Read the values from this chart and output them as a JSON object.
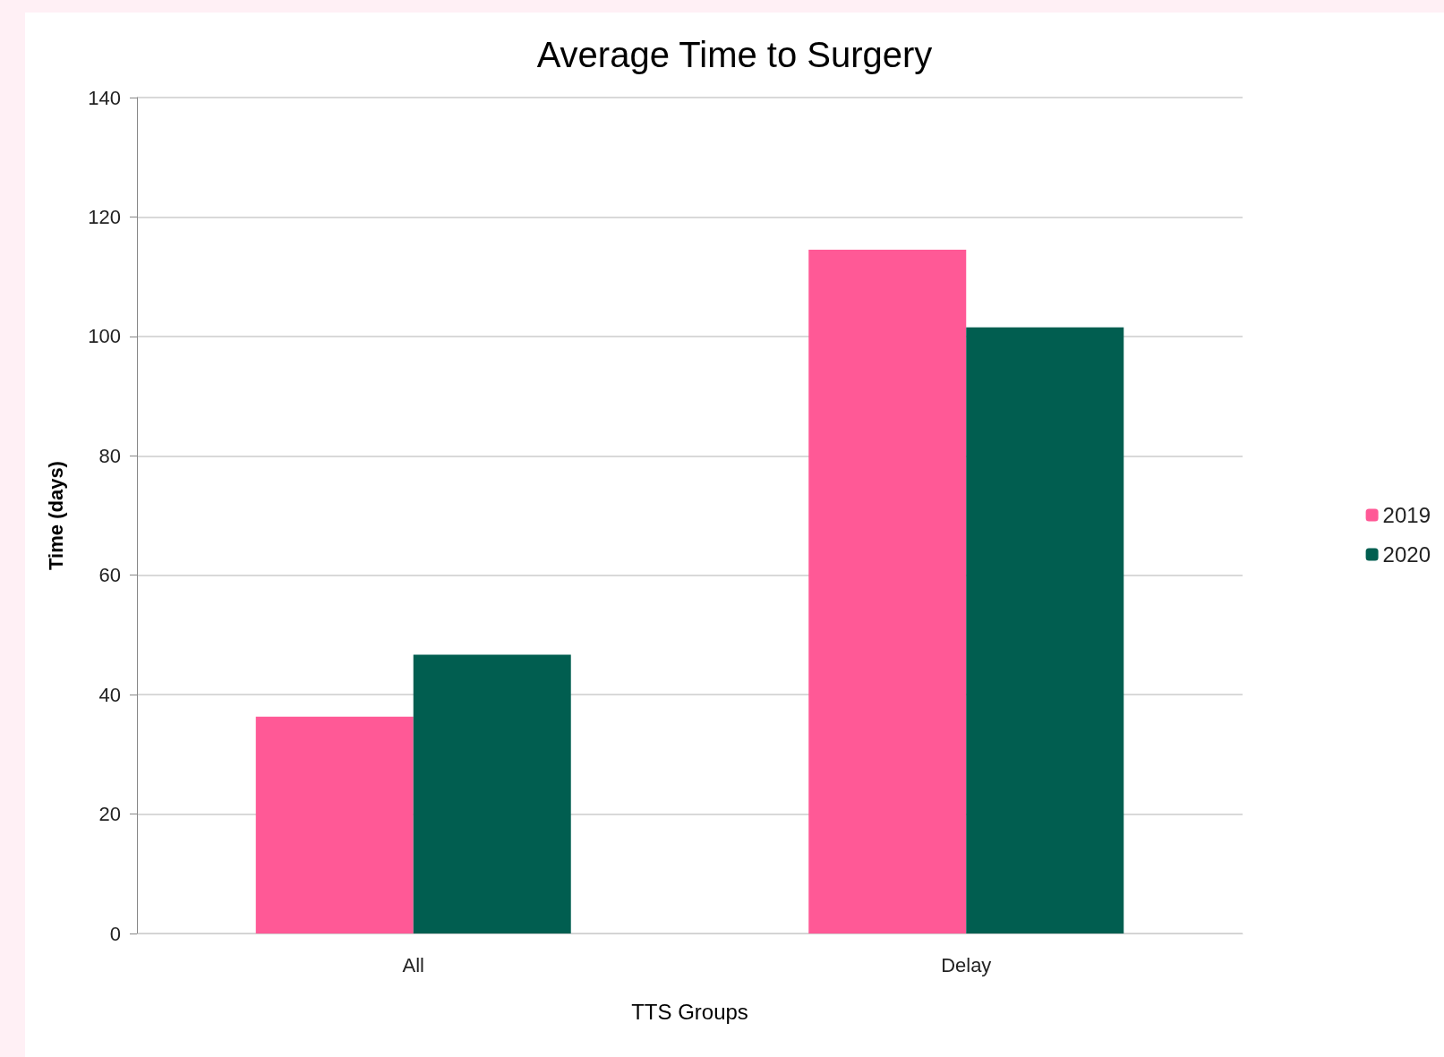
{
  "chart_data": {
    "type": "bar",
    "title": "Average Time to Surgery",
    "xlabel": "TTS Groups",
    "ylabel": "Time (days)",
    "categories": [
      "All",
      "Delay"
    ],
    "series": [
      {
        "name": "2019",
        "color": "#ff5996",
        "values": [
          36.3,
          114.5
        ]
      },
      {
        "name": "2020",
        "color": "#015e50",
        "values": [
          46.7,
          101.5
        ]
      }
    ],
    "ylim": [
      0,
      140
    ],
    "yticks": [
      0,
      20,
      40,
      60,
      80,
      100,
      120,
      140
    ],
    "grid": "y",
    "legend": "right"
  }
}
